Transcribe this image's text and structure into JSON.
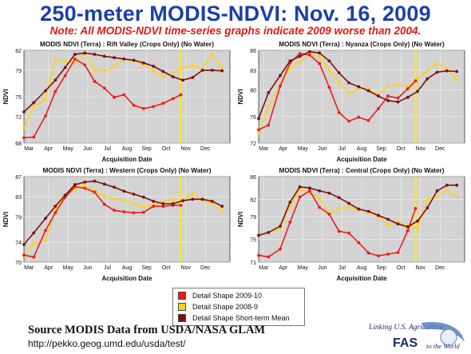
{
  "title": "250-meter MODIS-NDVI: Nov. 16, 2009",
  "note": "Note: All MODIS-NDVI time-series graphs indicate 2009 worse than 2004.",
  "colors": {
    "title": "#1c3fa8",
    "note": "#e0190f",
    "series_2009": "#ee1c1c",
    "series_2008": "#ffd21a",
    "series_mean": "#7a1010",
    "plot_bg": "#d3d3d3",
    "marker_line": "#ffee00"
  },
  "legend": {
    "items": [
      {
        "label": "Detail Shape 2009-10",
        "color": "#ee1c1c"
      },
      {
        "label": "Detail Shape 2008-9",
        "color": "#ffd21a"
      },
      {
        "label": "Detail Shape Short-term Mean",
        "color": "#7a1010"
      }
    ]
  },
  "source": "Source MODIS Data from USDA/NASA GLAM",
  "url": "http://pekko.geog.umd.edu/usda/test/",
  "logo": {
    "line1": "Linking U.S. Agriculture",
    "fas": "FAS",
    "line2": "to the World"
  },
  "chart_data": [
    {
      "type": "line",
      "title": "MODIS NDVI (Terra) : Rift Valley (Crops Only) (No Water)",
      "ylabel": "NDVI",
      "xlabel": "Acquisition Date",
      "x_ticks": [
        "Mar",
        "Apr",
        "May",
        "Jun",
        "Jul",
        "Aug",
        "Sep",
        "Oct",
        "Nov",
        "Dec"
      ],
      "y_ticks": [
        68,
        72,
        75,
        79,
        82
      ],
      "ylim": [
        68,
        82
      ],
      "xlim": [
        0,
        10.5
      ],
      "marker_x": 8.0,
      "series": [
        {
          "name": "Detail Shape 2009-10",
          "x": [
            0,
            0.5,
            1.1,
            1.6,
            2.1,
            2.6,
            3.1,
            3.6,
            4.1,
            4.6,
            5.1,
            5.6,
            6.1,
            6.6,
            7.1,
            7.6,
            8.0
          ],
          "y": [
            68.8,
            68.9,
            72.1,
            75.8,
            78.2,
            80.7,
            79.8,
            77.3,
            76.3,
            74.9,
            75.3,
            73.7,
            73.2,
            73.5,
            74.0,
            74.7,
            75.3
          ]
        },
        {
          "name": "Detail Shape 2008-9",
          "x": [
            0,
            0.5,
            1.1,
            1.6,
            2.1,
            2.6,
            3.1,
            3.6,
            4.1,
            4.6,
            5.1,
            5.6,
            6.1,
            6.6,
            7.1,
            7.6,
            8.1,
            8.6,
            9.1,
            9.6,
            10.1
          ],
          "y": [
            70.3,
            73.5,
            74.6,
            80.7,
            80.3,
            80.1,
            81.5,
            79.1,
            78.9,
            79.6,
            80.7,
            80.4,
            79.9,
            78.9,
            78.0,
            78.7,
            79.3,
            79.7,
            79.3,
            81.4,
            79.4
          ]
        },
        {
          "name": "Detail Shape Short-term Mean",
          "x": [
            0,
            0.5,
            1.1,
            1.6,
            2.1,
            2.6,
            3.1,
            3.6,
            4.1,
            4.6,
            5.1,
            5.6,
            6.1,
            6.6,
            7.1,
            7.6,
            8.1,
            8.6,
            9.1,
            9.6,
            10.1
          ],
          "y": [
            72.7,
            74.1,
            75.9,
            77.5,
            79.4,
            81.4,
            81.6,
            81.4,
            81.1,
            80.9,
            80.7,
            80.5,
            80.1,
            79.6,
            78.8,
            78.0,
            77.5,
            77.9,
            79.0,
            79.0,
            78.9
          ]
        }
      ]
    },
    {
      "type": "line",
      "title": "MODIS NDVI (Terra) : Nyanza (Crops Only) (No Water)",
      "ylabel": "NDVI",
      "xlabel": "Acquisition Date",
      "x_ticks": [
        "Mar",
        "Apr",
        "May",
        "Jun",
        "Jul",
        "Aug",
        "Sep",
        "Oct",
        "Nov",
        "Dec"
      ],
      "y_ticks": [
        72,
        76,
        80,
        83,
        86
      ],
      "ylim": [
        72,
        86
      ],
      "xlim": [
        0,
        10.5
      ],
      "marker_x": 8.0,
      "series": [
        {
          "name": "Detail Shape 2009-10",
          "x": [
            0,
            0.5,
            1.1,
            1.6,
            2.1,
            2.6,
            3.1,
            3.6,
            4.1,
            4.6,
            5.1,
            5.6,
            6.1,
            6.6,
            7.1,
            7.6,
            8.0
          ],
          "y": [
            74.0,
            74.7,
            80.6,
            84.1,
            85.5,
            85.3,
            84.0,
            80.4,
            76.6,
            75.3,
            75.9,
            75.4,
            77.2,
            79.1,
            78.8,
            80.2,
            81.4
          ]
        },
        {
          "name": "Detail Shape 2008-9",
          "x": [
            0,
            0.5,
            1.1,
            1.6,
            2.1,
            2.6,
            3.1,
            3.6,
            4.1,
            4.6,
            5.1,
            5.6,
            6.1,
            6.6,
            7.1,
            7.6,
            8.1,
            8.6,
            9.1,
            9.6,
            10.1
          ],
          "y": [
            73.5,
            77.4,
            80.9,
            83.3,
            84.3,
            85.5,
            85.0,
            83.0,
            81.2,
            79.6,
            80.2,
            80.1,
            79.3,
            80.6,
            80.8,
            80.6,
            81.7,
            83.0,
            84.0,
            83.2,
            81.6
          ]
        },
        {
          "name": "Detail Shape Short-term Mean",
          "x": [
            0,
            0.5,
            1.1,
            1.6,
            2.1,
            2.6,
            3.1,
            3.6,
            4.1,
            4.6,
            5.1,
            5.6,
            6.1,
            6.6,
            7.1,
            7.6,
            8.1,
            8.6,
            9.1,
            9.6,
            10.1
          ],
          "y": [
            75.7,
            79.6,
            82.2,
            84.4,
            85.1,
            85.8,
            85.6,
            84.4,
            82.6,
            81.1,
            80.5,
            79.9,
            79.1,
            78.4,
            78.2,
            78.9,
            79.8,
            81.7,
            82.7,
            82.9,
            82.8
          ]
        }
      ]
    },
    {
      "type": "line",
      "title": "MODIS NDVI (Terra) : Western (Crops Only) (No Water)",
      "ylabel": "NDVI",
      "xlabel": "Acquisition Date",
      "x_ticks": [
        "Mar",
        "Apr",
        "May",
        "Jun",
        "Jul",
        "Aug",
        "Sep",
        "Oct",
        "Nov",
        "Dec"
      ],
      "y_ticks": [
        70,
        74,
        79,
        83,
        87
      ],
      "ylim": [
        70,
        87
      ],
      "xlim": [
        0,
        10.5
      ],
      "marker_x": 8.0,
      "series": [
        {
          "name": "Detail Shape 2009-10",
          "x": [
            0,
            0.5,
            1.1,
            1.6,
            2.1,
            2.6,
            3.1,
            3.6,
            4.1,
            4.6,
            5.1,
            5.6,
            6.1,
            6.6,
            7.1,
            7.6,
            8.0
          ],
          "y": [
            71.4,
            71.0,
            76.3,
            79.8,
            82.9,
            85.0,
            84.7,
            83.9,
            81.5,
            80.3,
            80.0,
            79.8,
            79.9,
            81.1,
            81.1,
            81.3,
            81.3
          ]
        },
        {
          "name": "Detail Shape 2008-9",
          "x": [
            0,
            0.5,
            1.1,
            1.6,
            2.1,
            2.6,
            3.1,
            3.6,
            4.1,
            4.6,
            5.1,
            5.6,
            6.1,
            6.6,
            7.1,
            7.6,
            8.1,
            8.6,
            9.1,
            9.6,
            10.1
          ],
          "y": [
            71.2,
            73.8,
            74.3,
            80.5,
            83.1,
            84.5,
            85.3,
            84.3,
            83.0,
            82.6,
            82.3,
            81.6,
            81.0,
            81.4,
            82.0,
            82.4,
            82.3,
            83.6,
            82.3,
            81.6,
            80.1
          ]
        },
        {
          "name": "Detail Shape Short-term Mean",
          "x": [
            0,
            0.5,
            1.1,
            1.6,
            2.1,
            2.6,
            3.1,
            3.6,
            4.1,
            4.6,
            5.1,
            5.6,
            6.1,
            6.6,
            7.1,
            7.6,
            8.1,
            8.6,
            9.1,
            9.6,
            10.1
          ],
          "y": [
            73.5,
            75.8,
            78.7,
            81.1,
            83.3,
            85.4,
            85.9,
            86.1,
            85.5,
            84.9,
            84.1,
            83.5,
            82.9,
            82.1,
            81.6,
            81.6,
            82.2,
            82.5,
            82.5,
            82.1,
            81.1
          ]
        }
      ]
    },
    {
      "type": "line",
      "title": "MODIS NDVI (Terra) : Central (Crops Only) (No Water)",
      "ylabel": "NDVI",
      "xlabel": "Acquisition Date",
      "x_ticks": [
        "Mar",
        "Apr",
        "May",
        "Jun",
        "Jul",
        "Aug",
        "Sep",
        "Oct",
        "Nov",
        "Dec"
      ],
      "y_ticks": [
        71,
        75,
        79,
        82,
        86
      ],
      "ylim": [
        71,
        86
      ],
      "xlim": [
        0,
        10.5
      ],
      "marker_x": 8.0,
      "series": [
        {
          "name": "Detail Shape 2009-10",
          "x": [
            0,
            0.5,
            1.1,
            1.6,
            2.1,
            2.6,
            3.1,
            3.6,
            4.1,
            4.6,
            5.1,
            5.6,
            6.1,
            6.6,
            7.1,
            7.6,
            8.0
          ],
          "y": [
            72.2,
            71.9,
            73.3,
            78.0,
            82.4,
            83.5,
            80.6,
            79.4,
            76.4,
            76.1,
            74.4,
            72.6,
            72.1,
            72.4,
            72.7,
            76.5,
            80.4
          ]
        },
        {
          "name": "Detail Shape 2008-9",
          "x": [
            0,
            0.5,
            1.1,
            1.6,
            2.1,
            2.6,
            3.1,
            3.6,
            4.1,
            4.6,
            5.1,
            5.6,
            6.1,
            6.6,
            7.1,
            7.6,
            8.1,
            8.6,
            9.1,
            9.6,
            10.1
          ],
          "y": [
            75.8,
            76.2,
            76.9,
            81.0,
            83.6,
            83.3,
            82.1,
            79.4,
            80.5,
            80.6,
            80.2,
            79.8,
            79.0,
            77.5,
            78.0,
            77.4,
            77.0,
            82.0,
            82.5,
            83.6,
            82.5
          ]
        },
        {
          "name": "Detail Shape Short-term Mean",
          "x": [
            0,
            0.5,
            1.1,
            1.6,
            2.1,
            2.6,
            3.1,
            3.6,
            4.1,
            4.6,
            5.1,
            5.6,
            6.1,
            6.6,
            7.1,
            7.6,
            8.1,
            8.6,
            9.1,
            9.6,
            10.1
          ],
          "y": [
            75.7,
            76.2,
            77.3,
            81.5,
            84.2,
            84.0,
            83.5,
            83.1,
            82.3,
            81.3,
            80.3,
            79.9,
            79.2,
            78.5,
            77.7,
            77.2,
            78.2,
            80.5,
            83.5,
            84.5,
            84.5
          ]
        }
      ]
    }
  ]
}
